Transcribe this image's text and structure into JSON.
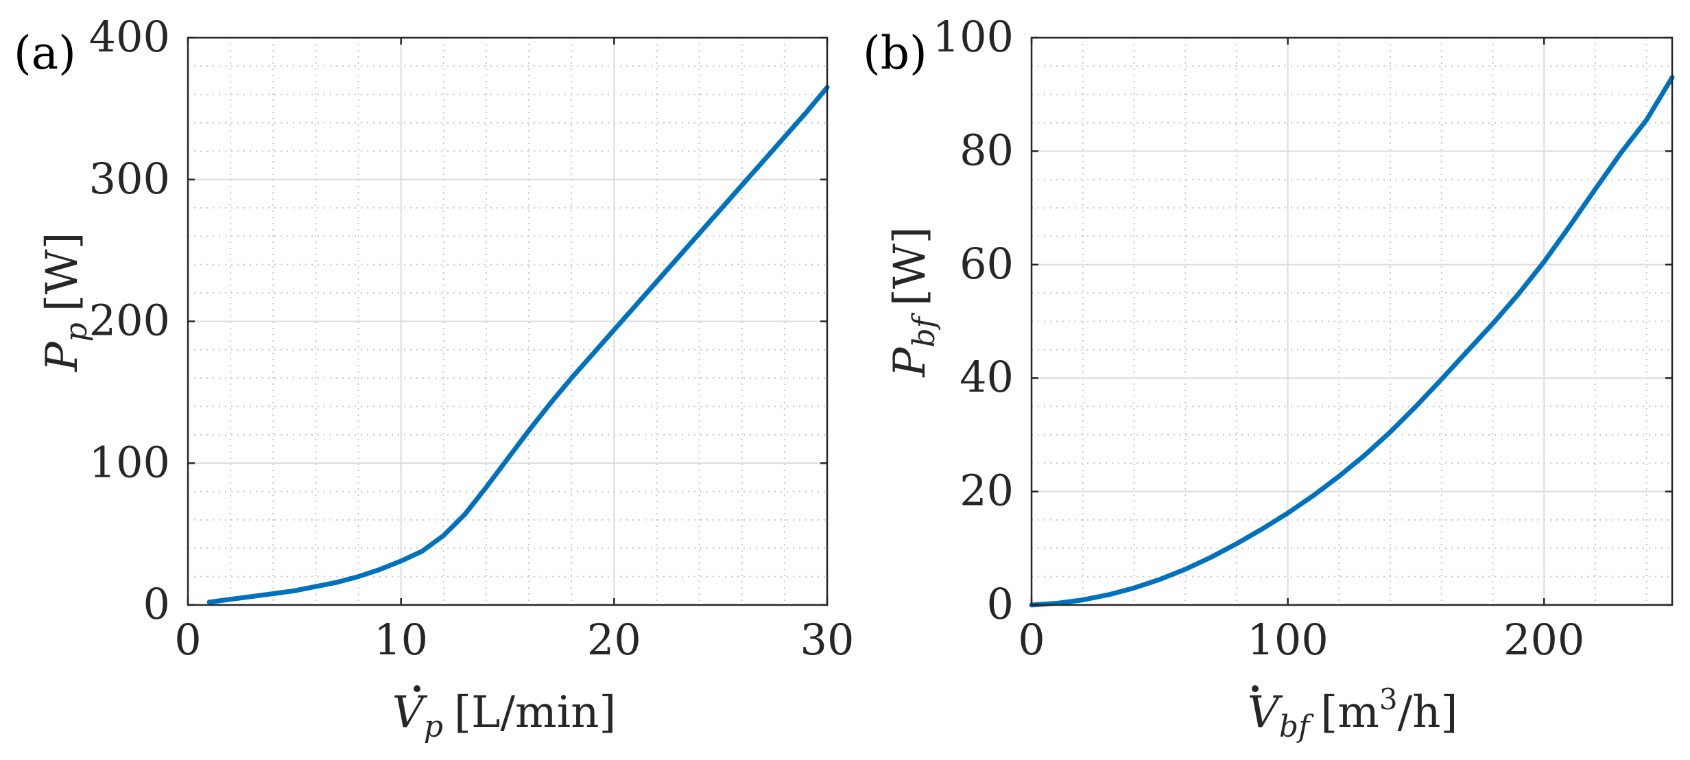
{
  "colors": {
    "line": "#0072BD",
    "axis": "#262626",
    "major_grid": "#DCDCDC",
    "minor_grid": "#C8C8C8",
    "background": "#ffffff"
  },
  "chart_data": [
    {
      "type": "line",
      "panel_label": "(a)",
      "xlabel": {
        "symbol": "V",
        "sub": "p",
        "unit": "[L/min]"
      },
      "ylabel": {
        "symbol": "P",
        "sub": "p",
        "unit": "[W]"
      },
      "xlim": [
        0,
        30
      ],
      "ylim": [
        0,
        400
      ],
      "xticks": [
        0,
        10,
        20,
        30
      ],
      "xtick_labels": [
        "0",
        "10",
        "20",
        "30"
      ],
      "yticks": [
        0,
        100,
        200,
        300,
        400
      ],
      "ytick_labels": [
        "0",
        "100",
        "200",
        "300",
        "400"
      ],
      "x_minor": 2,
      "y_minor": 20,
      "grid": true,
      "series": [
        {
          "x": [
            1,
            2,
            3,
            4,
            5,
            6,
            7,
            8,
            9,
            10,
            11,
            12,
            13,
            14,
            15,
            16,
            17,
            18,
            19,
            20,
            21,
            22,
            23,
            24,
            25,
            26,
            27,
            28,
            29,
            30
          ],
          "y": [
            2,
            4,
            6,
            8,
            10,
            13,
            16,
            20,
            25,
            31,
            38,
            49,
            64,
            83,
            103,
            123,
            142,
            160,
            177,
            194,
            211,
            228,
            245,
            262,
            279,
            296,
            313,
            330,
            347,
            365
          ]
        }
      ]
    },
    {
      "type": "line",
      "panel_label": "(b)",
      "xlabel": {
        "symbol": "V",
        "sub": "bf",
        "unit": "[m",
        "sup": "3",
        "unit2": "/h]"
      },
      "ylabel": {
        "symbol": "P",
        "sub": "bf",
        "unit": "[W]"
      },
      "xlim": [
        0,
        250
      ],
      "ylim": [
        0,
        100
      ],
      "xticks": [
        0,
        100,
        200
      ],
      "xtick_labels": [
        "0",
        "100",
        "200"
      ],
      "yticks": [
        0,
        20,
        40,
        60,
        80,
        100
      ],
      "ytick_labels": [
        "0",
        "20",
        "40",
        "60",
        "80",
        "100"
      ],
      "x_minor": 20,
      "y_minor": 5,
      "grid": true,
      "series": [
        {
          "x": [
            0,
            10,
            20,
            30,
            40,
            50,
            60,
            70,
            80,
            90,
            100,
            110,
            120,
            130,
            140,
            150,
            160,
            170,
            180,
            190,
            200,
            210,
            220,
            230,
            240,
            250
          ],
          "y": [
            0,
            0.3,
            0.9,
            1.8,
            3,
            4.5,
            6.3,
            8.4,
            10.8,
            13.4,
            16.2,
            19.3,
            22.7,
            26.4,
            30.5,
            35,
            39.8,
            44.7,
            49.6,
            54.8,
            60.5,
            66.8,
            73.3,
            79.7,
            85.5,
            93
          ]
        }
      ]
    }
  ]
}
